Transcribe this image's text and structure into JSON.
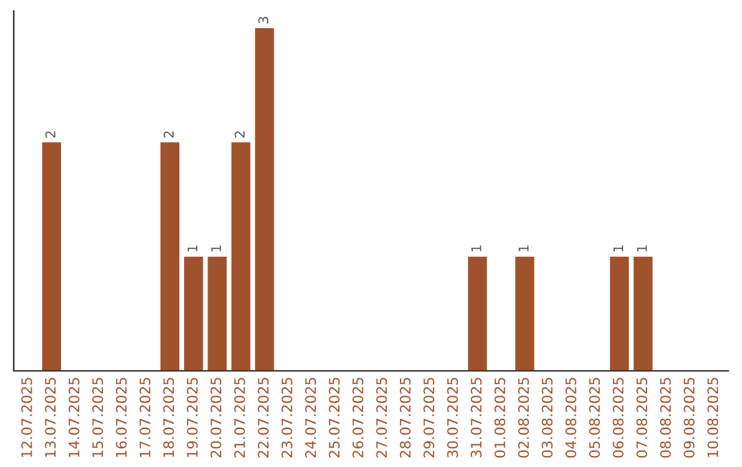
{
  "chart_data": {
    "type": "bar",
    "categories": [
      "12.07.2025",
      "13.07.2025",
      "14.07.2025",
      "15.07.2025",
      "16.07.2025",
      "17.07.2025",
      "18.07.2025",
      "19.07.2025",
      "20.07.2025",
      "21.07.2025",
      "22.07.2025",
      "23.07.2025",
      "24.07.2025",
      "25.07.2025",
      "26.07.2025",
      "27.07.2025",
      "28.07.2025",
      "29.07.2025",
      "30.07.2025",
      "31.07.2025",
      "01.08.2025",
      "02.08.2025",
      "03.08.2025",
      "04.08.2025",
      "05.08.2025",
      "06.08.2025",
      "07.08.2025",
      "08.08.2025",
      "09.08.2025",
      "10.08.2025"
    ],
    "values": [
      null,
      2,
      null,
      null,
      null,
      null,
      2,
      1,
      1,
      2,
      3,
      null,
      null,
      null,
      null,
      null,
      null,
      null,
      null,
      1,
      null,
      1,
      null,
      null,
      null,
      1,
      1,
      null,
      null,
      null
    ],
    "value_labels": [
      null,
      "2",
      null,
      null,
      null,
      null,
      "2",
      "1",
      "1",
      "2",
      "3",
      null,
      null,
      null,
      null,
      null,
      null,
      null,
      null,
      "1",
      null,
      "1",
      null,
      null,
      null,
      "1",
      "1",
      null,
      null,
      null
    ],
    "color": "#a0522d",
    "ylim": [
      0,
      3.15
    ],
    "tick_labels": "x",
    "grid": false,
    "legend": false
  }
}
